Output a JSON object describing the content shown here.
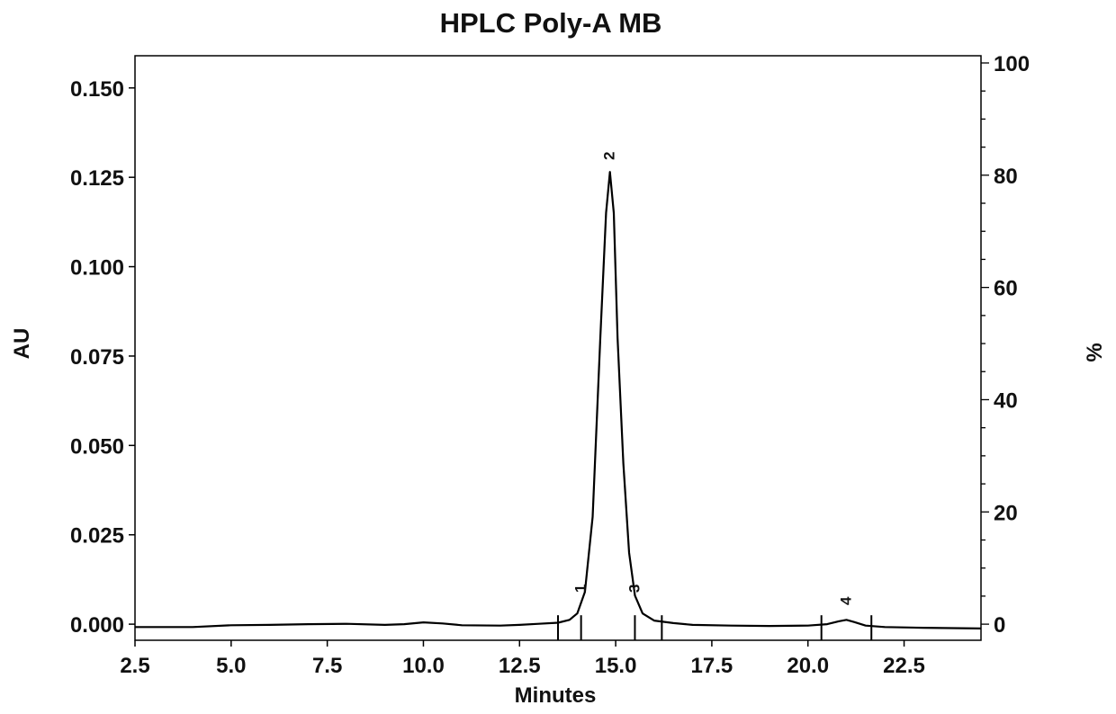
{
  "chart_data": {
    "type": "line",
    "title": "HPLC Poly-A MB",
    "xlabel": "Minutes",
    "ylabel": "AU",
    "y2label": "%",
    "xlim": [
      2.5,
      24.5
    ],
    "ylim": [
      -0.0045,
      0.159
    ],
    "y2lim": [
      0,
      100
    ],
    "grid": false,
    "x_ticks": [
      "2.5",
      "5.0",
      "7.5",
      "10.0",
      "12.5",
      "15.0",
      "17.5",
      "20.0",
      "22.5"
    ],
    "y_ticks": [
      "0.000",
      "0.025",
      "0.050",
      "0.075",
      "0.100",
      "0.125",
      "0.150"
    ],
    "y2_ticks": [
      "0",
      "20",
      "40",
      "60",
      "80",
      "100"
    ],
    "series": [
      {
        "x": [
          2.5,
          3.0,
          4.0,
          5.0,
          6.0,
          7.0,
          8.0,
          9.0,
          9.5,
          10.0,
          10.5,
          11.0,
          12.0,
          12.5,
          13.0,
          13.5,
          13.8,
          14.0,
          14.2,
          14.4,
          14.6,
          14.75,
          14.85,
          14.95,
          15.05,
          15.2,
          15.35,
          15.5,
          15.7,
          16.0,
          16.5,
          17.0,
          18.0,
          19.0,
          20.0,
          20.5,
          20.8,
          21.0,
          21.2,
          21.5,
          22.0,
          23.0,
          24.5
        ],
        "y": [
          -0.0008,
          -0.0008,
          -0.0008,
          -0.0003,
          -0.0002,
          0.0,
          0.0001,
          -0.0002,
          0.0,
          0.0005,
          0.0002,
          -0.0003,
          -0.0004,
          -0.0002,
          0.0001,
          0.0004,
          0.0012,
          0.003,
          0.009,
          0.03,
          0.08,
          0.115,
          0.1265,
          0.115,
          0.08,
          0.045,
          0.02,
          0.008,
          0.003,
          0.001,
          0.0003,
          -0.0002,
          -0.0004,
          -0.0005,
          -0.0004,
          0.0,
          0.0008,
          0.0012,
          0.0006,
          -0.0004,
          -0.0008,
          -0.001,
          -0.0012
        ]
      }
    ],
    "peaks": [
      {
        "label": "1",
        "x": 14.1
      },
      {
        "label": "2",
        "x": 14.85
      },
      {
        "label": "3",
        "x": 15.5
      },
      {
        "label": "4",
        "x": 21.0
      }
    ],
    "integration_markers_x": [
      13.5,
      14.1,
      15.5,
      16.2,
      20.35,
      21.65
    ]
  }
}
